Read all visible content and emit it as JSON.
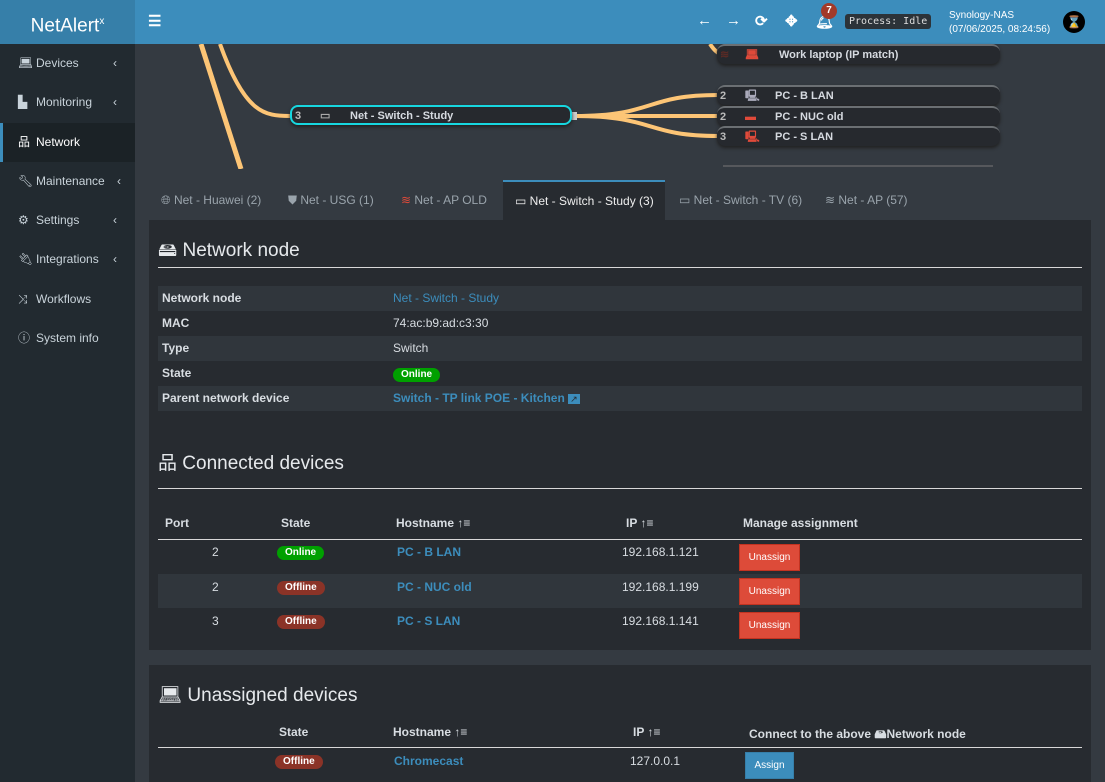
{
  "header": {
    "logo": "NetAlert",
    "logo_sup": "x",
    "notifications": "7",
    "process": "Process: Idle",
    "host": "Synology-NAS",
    "datetime": "(07/06/2025, 08:24:56)"
  },
  "sidebar": {
    "items": [
      {
        "label": "Devices",
        "icon": "laptop-icon"
      },
      {
        "label": "Monitoring",
        "icon": "chart-icon"
      },
      {
        "label": "Network",
        "icon": "sitemap-icon"
      },
      {
        "label": "Maintenance",
        "icon": "wrench-icon"
      },
      {
        "label": "Settings",
        "icon": "gear-icon"
      },
      {
        "label": "Integrations",
        "icon": "plug-icon"
      },
      {
        "label": "Workflows",
        "icon": "shuffle-icon"
      },
      {
        "label": "System info",
        "icon": "info-icon"
      }
    ]
  },
  "tree": {
    "focus": {
      "port": "3",
      "label": "Net - Switch - Study"
    },
    "nodes": [
      {
        "port": "",
        "label": "Work laptop (IP match)"
      },
      {
        "port": "2",
        "label": "PC - B LAN"
      },
      {
        "port": "2",
        "label": "PC - NUC old"
      },
      {
        "port": "3",
        "label": "PC - S LAN"
      }
    ]
  },
  "tabs": [
    {
      "label": "Net - Huawei (2)"
    },
    {
      "label": "Net - USG (1)"
    },
    {
      "label": "Net - AP OLD"
    },
    {
      "label": "Net - Switch - Study (3)"
    },
    {
      "label": "Net - Switch - TV (6)"
    },
    {
      "label": "Net - AP (57)"
    }
  ],
  "node": {
    "title": "Network node",
    "rows": [
      {
        "k": "Network node",
        "v": "Net - Switch - Study"
      },
      {
        "k": "MAC",
        "v": "74:ac:b9:ad:c3:30"
      },
      {
        "k": "Type",
        "v": "Switch"
      },
      {
        "k": "State",
        "v": "Online"
      },
      {
        "k": "Parent network device",
        "v": "Switch - TP link POE - Kitchen"
      }
    ]
  },
  "connected": {
    "title": "Connected devices",
    "headers": {
      "port": "Port",
      "state": "State",
      "hostname": "Hostname",
      "ip": "IP",
      "manage": "Manage assignment"
    },
    "rows": [
      {
        "port": "2",
        "state": "Online",
        "hostname": "PC - B LAN",
        "ip": "192.168.1.121",
        "action": "Unassign"
      },
      {
        "port": "2",
        "state": "Offline",
        "hostname": "PC - NUC old",
        "ip": "192.168.1.199",
        "action": "Unassign"
      },
      {
        "port": "3",
        "state": "Offline",
        "hostname": "PC - S LAN",
        "ip": "192.168.1.141",
        "action": "Unassign"
      }
    ]
  },
  "unassigned": {
    "title": "Unassigned devices",
    "headers": {
      "state": "State",
      "hostname": "Hostname",
      "ip": "IP",
      "connect_pre": "Connect to the above",
      "connect_post": "Network node"
    },
    "rows": [
      {
        "state": "Offline",
        "hostname": "Chromecast",
        "ip": "127.0.0.1",
        "action": "Assign"
      }
    ]
  }
}
